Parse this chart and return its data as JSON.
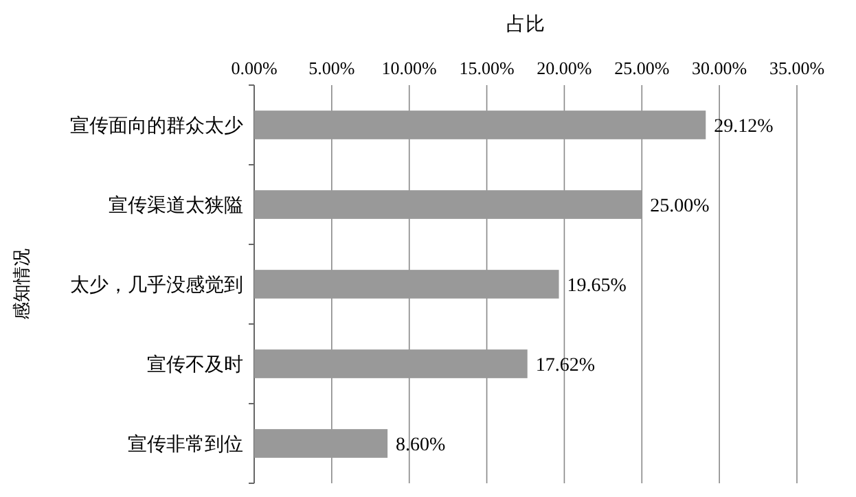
{
  "chart_data": {
    "type": "bar",
    "orientation": "horizontal",
    "xlabel": "占比",
    "ylabel": "感知情况",
    "categories": [
      "宣传面向的群众太少",
      "宣传渠道太狭隘",
      "太少，几乎没感觉到",
      "宣传不及时",
      "宣传非常到位"
    ],
    "values": [
      29.12,
      25.0,
      19.65,
      17.62,
      8.6
    ],
    "value_labels": [
      "29.12%",
      "25.00%",
      "19.65%",
      "17.62%",
      "8.60%"
    ],
    "color": "#999999",
    "xlim": [
      0,
      35
    ],
    "xticks": [
      {
        "value": 0,
        "label": "0.00%"
      },
      {
        "value": 5,
        "label": "5.00%"
      },
      {
        "value": 10,
        "label": "10.00%"
      },
      {
        "value": 15,
        "label": "15.00%"
      },
      {
        "value": 20,
        "label": "20.00%"
      },
      {
        "value": 25,
        "label": "25.00%"
      },
      {
        "value": 30,
        "label": "30.00%"
      },
      {
        "value": 35,
        "label": "35.00%"
      }
    ],
    "grid": "x"
  }
}
